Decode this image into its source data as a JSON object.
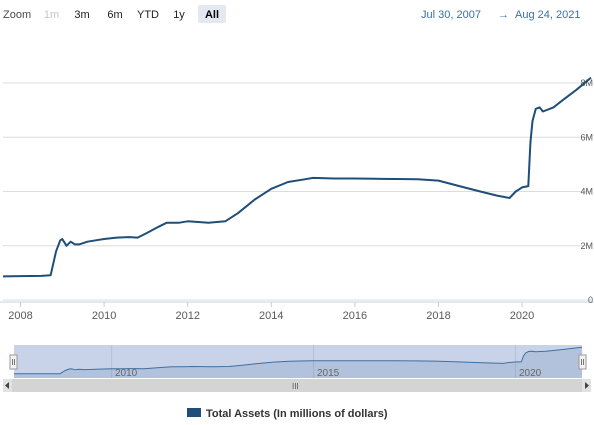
{
  "toolbar": {
    "zoom_label": "Zoom",
    "buttons": [
      {
        "label": "1m",
        "state": "disabled"
      },
      {
        "label": "3m",
        "state": "normal"
      },
      {
        "label": "6m",
        "state": "normal"
      },
      {
        "label": "YTD",
        "state": "normal"
      },
      {
        "label": "1y",
        "state": "normal"
      },
      {
        "label": "All",
        "state": "active"
      }
    ],
    "range_start": "Jul 30, 2007",
    "range_arrow": "→",
    "range_end": "Aug 24, 2021"
  },
  "navigator": {
    "labels": [
      "2010",
      "2015",
      "2020"
    ],
    "scroll_grip": "III"
  },
  "colors": {
    "series": "#1f4e79",
    "grid": "#dcdcdc",
    "navigator_fill": "#c8d3ea",
    "range_text": "#3a6fa8"
  },
  "chart_data": {
    "type": "line",
    "title": "",
    "xlabel": "",
    "ylabel": "",
    "xlim": [
      2007.58,
      2021.65
    ],
    "ylim": [
      0,
      8000000
    ],
    "x_ticks": [
      "2008",
      "2010",
      "2012",
      "2014",
      "2016",
      "2018",
      "2020"
    ],
    "y_ticks": [
      "0",
      "2M",
      "4M",
      "6M",
      "8M"
    ],
    "grid": true,
    "legend_position": "bottom-center",
    "series": [
      {
        "name": "Total Assets (In millions of dollars)",
        "x": [
          2007.58,
          2008.0,
          2008.5,
          2008.72,
          2008.85,
          2008.95,
          2009.0,
          2009.1,
          2009.2,
          2009.3,
          2009.4,
          2009.6,
          2009.8,
          2010.0,
          2010.3,
          2010.6,
          2010.8,
          2011.0,
          2011.3,
          2011.5,
          2011.8,
          2012.0,
          2012.5,
          2012.9,
          2013.2,
          2013.6,
          2014.0,
          2014.4,
          2014.8,
          2015.0,
          2015.5,
          2016.0,
          2016.5,
          2017.0,
          2017.5,
          2018.0,
          2018.5,
          2019.0,
          2019.4,
          2019.7,
          2019.85,
          2020.0,
          2020.15,
          2020.2,
          2020.25,
          2020.33,
          2020.42,
          2020.5,
          2020.75,
          2021.0,
          2021.3,
          2021.65
        ],
        "y": [
          870000,
          880000,
          890000,
          910000,
          1800000,
          2200000,
          2250000,
          2000000,
          2150000,
          2050000,
          2050000,
          2150000,
          2200000,
          2250000,
          2300000,
          2320000,
          2300000,
          2450000,
          2700000,
          2850000,
          2850000,
          2900000,
          2850000,
          2900000,
          3200000,
          3700000,
          4100000,
          4350000,
          4450000,
          4500000,
          4480000,
          4480000,
          4470000,
          4460000,
          4450000,
          4400000,
          4200000,
          4000000,
          3850000,
          3760000,
          4000000,
          4150000,
          4200000,
          5800000,
          6600000,
          7050000,
          7100000,
          6950000,
          7100000,
          7400000,
          7750000,
          8200000
        ]
      }
    ]
  }
}
